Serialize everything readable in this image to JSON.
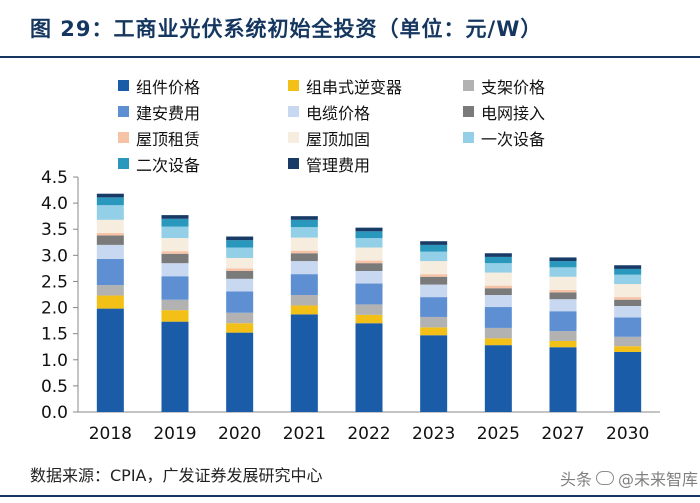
{
  "title": "图 29：工商业光伏系统初始全投资（单位：元/W）",
  "source": "数据来源：CPIA，广发证券发展研究中心",
  "watermark": {
    "prefix": "头条",
    "name": "@未来智库"
  },
  "chart_data": {
    "type": "bar",
    "stacked": true,
    "categories": [
      "2018",
      "2019",
      "2020",
      "2021",
      "2022",
      "2023",
      "2025",
      "2027",
      "2030"
    ],
    "ylim": [
      0,
      4.5
    ],
    "yticks": [
      0.0,
      0.5,
      1.0,
      1.5,
      2.0,
      2.5,
      3.0,
      3.5,
      4.0,
      4.5
    ],
    "ytick_labels": [
      "0.0",
      "0.5",
      "1.0",
      "1.5",
      "2.0",
      "2.5",
      "3.0",
      "3.5",
      "4.0",
      "4.5"
    ],
    "xlabel": "",
    "ylabel": "",
    "legend_position": "top",
    "series": [
      {
        "name": "组件价格",
        "color": "#1b5ca8",
        "values": [
          1.98,
          1.73,
          1.52,
          1.87,
          1.7,
          1.47,
          1.28,
          1.24,
          1.15
        ]
      },
      {
        "name": "组串式逆变器",
        "color": "#f3c017",
        "values": [
          0.25,
          0.22,
          0.18,
          0.17,
          0.16,
          0.15,
          0.13,
          0.12,
          0.11
        ]
      },
      {
        "name": "支架价格",
        "color": "#b2b2b2",
        "values": [
          0.2,
          0.2,
          0.2,
          0.2,
          0.2,
          0.2,
          0.2,
          0.19,
          0.18
        ]
      },
      {
        "name": "建安费用",
        "color": "#5e8fd3",
        "values": [
          0.5,
          0.45,
          0.41,
          0.4,
          0.4,
          0.38,
          0.4,
          0.38,
          0.37
        ]
      },
      {
        "name": "电缆价格",
        "color": "#c7d8f0",
        "values": [
          0.27,
          0.25,
          0.24,
          0.25,
          0.24,
          0.24,
          0.23,
          0.23,
          0.22
        ]
      },
      {
        "name": "电网接入",
        "color": "#7a7a7a",
        "values": [
          0.18,
          0.18,
          0.15,
          0.15,
          0.15,
          0.15,
          0.13,
          0.13,
          0.12
        ]
      },
      {
        "name": "屋顶租赁",
        "color": "#f6c3a6",
        "values": [
          0.05,
          0.05,
          0.05,
          0.05,
          0.05,
          0.05,
          0.05,
          0.05,
          0.05
        ]
      },
      {
        "name": "屋顶加固",
        "color": "#f6eddf",
        "values": [
          0.25,
          0.25,
          0.2,
          0.25,
          0.25,
          0.25,
          0.25,
          0.25,
          0.25
        ]
      },
      {
        "name": "一次设备",
        "color": "#93cfe6",
        "values": [
          0.28,
          0.22,
          0.2,
          0.2,
          0.18,
          0.18,
          0.18,
          0.18,
          0.18
        ]
      },
      {
        "name": "二次设备",
        "color": "#2a97bc",
        "values": [
          0.15,
          0.15,
          0.14,
          0.14,
          0.13,
          0.13,
          0.12,
          0.12,
          0.11
        ]
      },
      {
        "name": "管理费用",
        "color": "#173a66",
        "values": [
          0.07,
          0.07,
          0.07,
          0.07,
          0.07,
          0.07,
          0.07,
          0.07,
          0.07
        ]
      }
    ]
  }
}
